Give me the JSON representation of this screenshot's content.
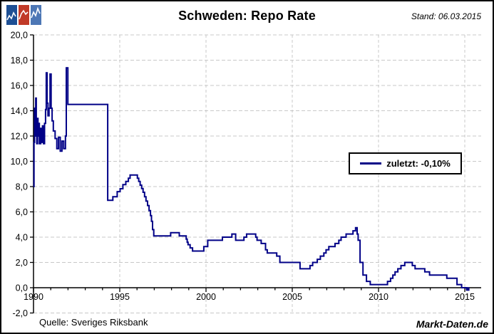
{
  "header": {
    "title": "Schweden: Repo Rate",
    "stand": "Stand: 06.03.2015",
    "logo": {
      "icon": "zigzag-chart-panels",
      "panel_colors": [
        "#1d4f94",
        "#c13a28",
        "#4d77b5"
      ],
      "zigzag_color": "#ffffff"
    }
  },
  "legend": {
    "label": "zuletzt: -0,10%",
    "line_color": "#000087"
  },
  "footer": {
    "source": "Quelle: Sveriges Riksbank",
    "brand": "Markt-Daten.de"
  },
  "chart_data": {
    "type": "line",
    "step": true,
    "title": "Schweden: Repo Rate",
    "xlabel": "",
    "ylabel": "",
    "xlim": [
      1990,
      2015.95
    ],
    "ylim": [
      -2,
      20
    ],
    "grid": "dashed",
    "grid_color": "#c8c8c8",
    "axis_color": "#000000",
    "legend_position": "right-middle",
    "yticks": {
      "values": [
        20,
        18,
        16,
        14,
        12,
        10,
        8,
        6,
        4,
        2,
        0,
        -2
      ],
      "labels": [
        "20,0",
        "18,0",
        "16,0",
        "14,0",
        "12,0",
        "10,0",
        "8,0",
        "6,0",
        "4,0",
        "2,0",
        "0,0",
        "-2,0"
      ]
    },
    "xticks": {
      "values": [
        1990,
        1995,
        2000,
        2005,
        2010,
        2015
      ],
      "labels": [
        "1990",
        "1995",
        "2000",
        "2005",
        "2010",
        "2015"
      ],
      "minor_step_years": 1
    },
    "series": [
      {
        "name": "Repo Rate",
        "color": "#000087",
        "last_value_label": "-0,10%",
        "points": [
          [
            1990.0,
            8.0
          ],
          [
            1990.03,
            11.5
          ],
          [
            1990.06,
            14.2
          ],
          [
            1990.1,
            12.0
          ],
          [
            1990.13,
            15.0
          ],
          [
            1990.16,
            13.4
          ],
          [
            1990.19,
            11.4
          ],
          [
            1990.23,
            13.4
          ],
          [
            1990.26,
            12.0
          ],
          [
            1990.3,
            13.0
          ],
          [
            1990.34,
            11.4
          ],
          [
            1990.42,
            12.6
          ],
          [
            1990.47,
            11.5
          ],
          [
            1990.52,
            12.8
          ],
          [
            1990.58,
            11.4
          ],
          [
            1990.64,
            13.0
          ],
          [
            1990.7,
            14.1
          ],
          [
            1990.74,
            17.0
          ],
          [
            1990.79,
            14.6
          ],
          [
            1990.84,
            13.6
          ],
          [
            1990.9,
            14.2
          ],
          [
            1990.96,
            16.9
          ],
          [
            1991.02,
            14.2
          ],
          [
            1991.08,
            13.2
          ],
          [
            1991.15,
            12.4
          ],
          [
            1991.25,
            11.8
          ],
          [
            1991.35,
            11.0
          ],
          [
            1991.45,
            11.9
          ],
          [
            1991.55,
            10.8
          ],
          [
            1991.65,
            11.6
          ],
          [
            1991.75,
            11.0
          ],
          [
            1991.85,
            12.0
          ],
          [
            1991.9,
            17.4
          ],
          [
            1991.99,
            14.5
          ],
          [
            1994.3,
            6.92
          ],
          [
            1994.6,
            7.2
          ],
          [
            1994.85,
            7.6
          ],
          [
            1995.02,
            7.83
          ],
          [
            1995.18,
            8.16
          ],
          [
            1995.35,
            8.41
          ],
          [
            1995.5,
            8.66
          ],
          [
            1995.6,
            8.91
          ],
          [
            1996.02,
            8.66
          ],
          [
            1996.1,
            8.41
          ],
          [
            1996.18,
            8.11
          ],
          [
            1996.27,
            7.85
          ],
          [
            1996.35,
            7.55
          ],
          [
            1996.44,
            7.2
          ],
          [
            1996.52,
            6.85
          ],
          [
            1996.61,
            6.5
          ],
          [
            1996.7,
            6.1
          ],
          [
            1996.78,
            5.7
          ],
          [
            1996.84,
            5.25
          ],
          [
            1996.9,
            4.6
          ],
          [
            1996.97,
            4.1
          ],
          [
            1997.95,
            4.35
          ],
          [
            1998.45,
            4.1
          ],
          [
            1998.85,
            3.85
          ],
          [
            1998.91,
            3.6
          ],
          [
            1998.96,
            3.4
          ],
          [
            1999.08,
            3.15
          ],
          [
            1999.22,
            2.9
          ],
          [
            1999.87,
            3.25
          ],
          [
            2000.1,
            3.75
          ],
          [
            2000.95,
            4.0
          ],
          [
            2001.5,
            4.25
          ],
          [
            2001.72,
            3.75
          ],
          [
            2002.2,
            4.0
          ],
          [
            2002.35,
            4.25
          ],
          [
            2002.88,
            4.0
          ],
          [
            2002.96,
            3.75
          ],
          [
            2003.2,
            3.5
          ],
          [
            2003.45,
            3.0
          ],
          [
            2003.55,
            2.75
          ],
          [
            2004.1,
            2.5
          ],
          [
            2004.28,
            2.0
          ],
          [
            2005.45,
            1.5
          ],
          [
            2006.03,
            1.75
          ],
          [
            2006.18,
            2.0
          ],
          [
            2006.45,
            2.25
          ],
          [
            2006.63,
            2.5
          ],
          [
            2006.83,
            2.75
          ],
          [
            2006.96,
            3.0
          ],
          [
            2007.12,
            3.25
          ],
          [
            2007.48,
            3.5
          ],
          [
            2007.7,
            3.75
          ],
          [
            2007.83,
            4.0
          ],
          [
            2008.12,
            4.25
          ],
          [
            2008.52,
            4.5
          ],
          [
            2008.67,
            4.75
          ],
          [
            2008.76,
            4.25
          ],
          [
            2008.82,
            3.75
          ],
          [
            2008.93,
            2.0
          ],
          [
            2009.1,
            1.0
          ],
          [
            2009.3,
            0.5
          ],
          [
            2009.52,
            0.25
          ],
          [
            2010.52,
            0.5
          ],
          [
            2010.7,
            0.75
          ],
          [
            2010.83,
            1.0
          ],
          [
            2010.96,
            1.25
          ],
          [
            2011.12,
            1.5
          ],
          [
            2011.3,
            1.75
          ],
          [
            2011.52,
            2.0
          ],
          [
            2011.96,
            1.75
          ],
          [
            2012.12,
            1.5
          ],
          [
            2012.68,
            1.25
          ],
          [
            2012.96,
            1.0
          ],
          [
            2013.96,
            0.75
          ],
          [
            2014.55,
            0.25
          ],
          [
            2014.82,
            0.0
          ],
          [
            2015.1,
            -0.1
          ],
          [
            2015.17,
            -0.1
          ]
        ]
      }
    ]
  }
}
